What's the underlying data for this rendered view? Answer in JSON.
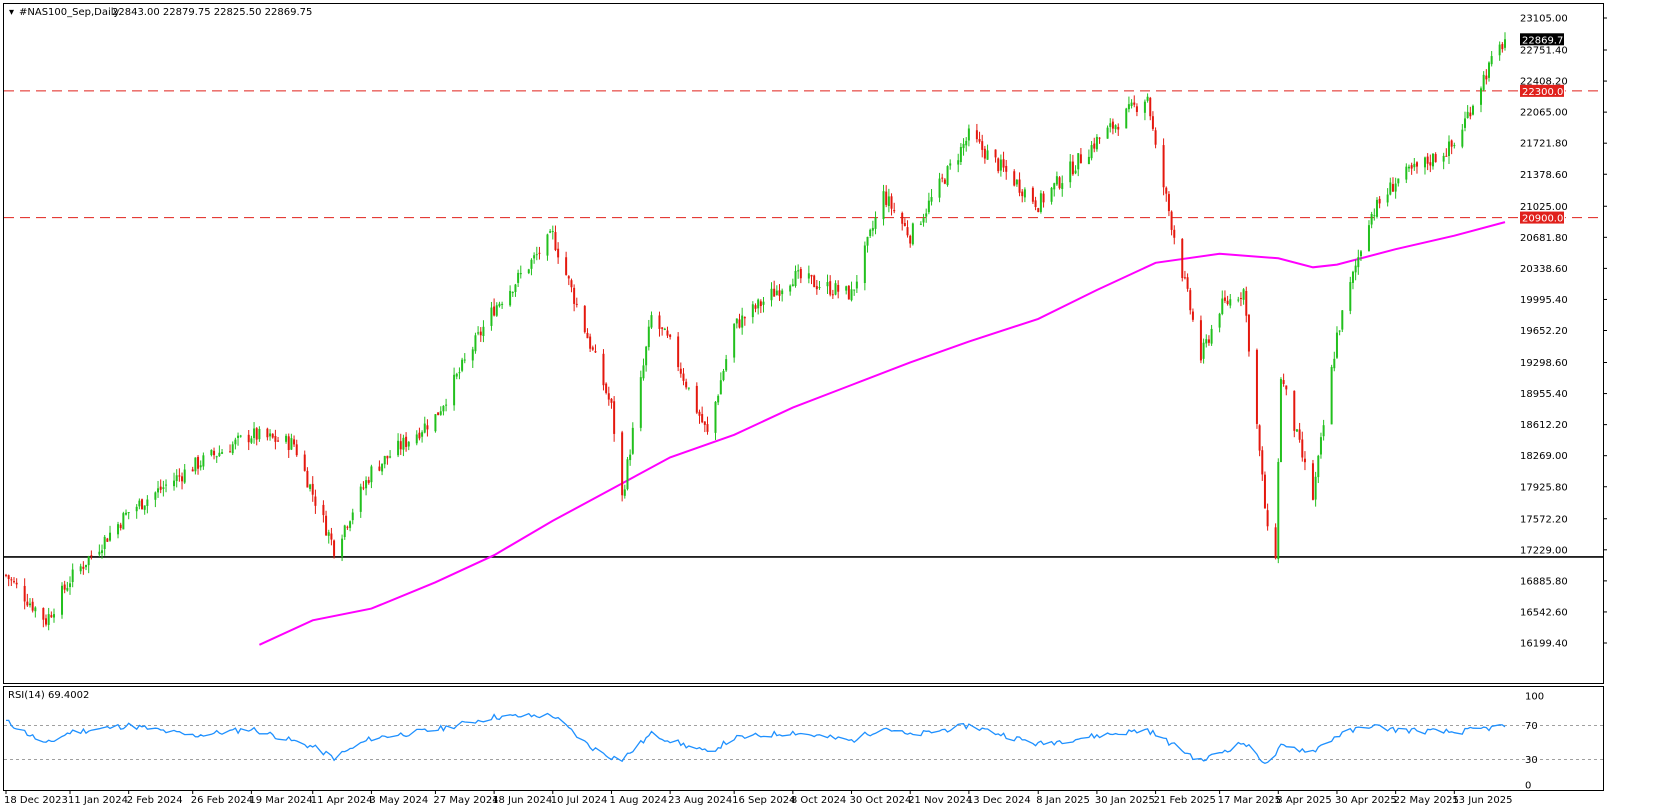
{
  "header": {
    "symbol": "#NAS100_Sep,Daily",
    "ohlc": "22843.00 22879.75 22825.50 22869.75"
  },
  "chart_data": {
    "type": "candlestick",
    "price_axis": {
      "ticks": [
        "23105.00",
        "22751.40",
        "22408.20",
        "22065.00",
        "21721.80",
        "21378.60",
        "21025.00",
        "20681.80",
        "20338.60",
        "19995.40",
        "19652.20",
        "19298.60",
        "18955.40",
        "18612.20",
        "18269.00",
        "17925.80",
        "17572.20",
        "17229.00",
        "16885.80",
        "16542.60",
        "16199.40"
      ],
      "range": [
        16199.4,
        23105.0
      ],
      "current_price": "22869.75",
      "current_price_value": 22869.75
    },
    "date_axis": {
      "labels": [
        "18 Dec 2023",
        "11 Jan 2024",
        "2 Feb 2024",
        "26 Feb 2024",
        "19 Mar 2024",
        "11 Apr 2024",
        "3 May 2024",
        "27 May 2024",
        "18 Jun 2024",
        "10 Jul 2024",
        "1 Aug 2024",
        "23 Aug 2024",
        "16 Sep 2024",
        "8 Oct 2024",
        "30 Oct 2024",
        "21 Nov 2024",
        "13 Dec 2024",
        "8 Jan 2025",
        "30 Jan 2025",
        "21 Feb 2025",
        "17 Mar 2025",
        "8 Apr 2025",
        "30 Apr 2025",
        "22 May 2025",
        "13 Jun 2025"
      ]
    },
    "levels": [
      {
        "label": "22300.00",
        "value": 22300.0,
        "style": "dashed",
        "color": "#e0201b"
      },
      {
        "label": "20900.00",
        "value": 20900.0,
        "style": "dashed",
        "color": "#e0201b"
      },
      {
        "value": 17150.0,
        "style": "solid",
        "color": "#000000"
      }
    ],
    "key_points": [
      {
        "date": "18 Dec 2023",
        "close": 16950
      },
      {
        "date": "2 Jan 2024",
        "close": 16450
      },
      {
        "date": "11 Jan 2024",
        "close": 16900
      },
      {
        "date": "2 Feb 2024",
        "close": 17650
      },
      {
        "date": "26 Feb 2024",
        "close": 18150
      },
      {
        "date": "19 Mar 2024",
        "close": 18500
      },
      {
        "date": "4 Apr 2024",
        "close": 18400
      },
      {
        "date": "11 Apr 2024",
        "close": 17850
      },
      {
        "date": "19 Apr 2024",
        "close": 17250
      },
      {
        "date": "3 May 2024",
        "close": 18100
      },
      {
        "date": "27 May 2024",
        "close": 18700
      },
      {
        "date": "18 Jun 2024",
        "close": 19900
      },
      {
        "date": "10 Jul 2024",
        "close": 20700
      },
      {
        "date": "24 Jul 2024",
        "close": 19500
      },
      {
        "date": "1 Aug 2024",
        "close": 18800
      },
      {
        "date": "5 Aug 2024",
        "close": 17800
      },
      {
        "date": "16 Aug 2024",
        "close": 19800
      },
      {
        "date": "23 Aug 2024",
        "close": 19500
      },
      {
        "date": "6 Sep 2024",
        "close": 18500
      },
      {
        "date": "16 Sep 2024",
        "close": 19700
      },
      {
        "date": "8 Oct 2024",
        "close": 20250
      },
      {
        "date": "30 Oct 2024",
        "close": 20050
      },
      {
        "date": "11 Nov 2024",
        "close": 21150
      },
      {
        "date": "21 Nov 2024",
        "close": 20700
      },
      {
        "date": "13 Dec 2024",
        "close": 21800
      },
      {
        "date": "8 Jan 2025",
        "close": 21050
      },
      {
        "date": "30 Jan 2025",
        "close": 21750
      },
      {
        "date": "18 Feb 2025",
        "close": 22250
      },
      {
        "date": "21 Feb 2025",
        "close": 21650
      },
      {
        "date": "10 Mar 2025",
        "close": 19350
      },
      {
        "date": "17 Mar 2025",
        "close": 19900
      },
      {
        "date": "26 Mar 2025",
        "close": 20100
      },
      {
        "date": "4 Apr 2025",
        "close": 17400
      },
      {
        "date": "7 Apr 2025",
        "close": 17200
      },
      {
        "date": "9 Apr 2025",
        "close": 19150
      },
      {
        "date": "21 Apr 2025",
        "close": 17800
      },
      {
        "date": "30 Apr 2025",
        "close": 19600
      },
      {
        "date": "12 May 2025",
        "close": 20900
      },
      {
        "date": "22 May 2025",
        "close": 21300
      },
      {
        "date": "13 Jun 2025",
        "close": 21700
      },
      {
        "date": "24 Jun 2025",
        "close": 22450
      },
      {
        "date": "2 Jul 2025",
        "close": 22869.75
      }
    ],
    "moving_average": {
      "color": "#ff00ff",
      "points": [
        {
          "date": "22 Mar 2024",
          "value": 16180
        },
        {
          "date": "11 Apr 2024",
          "value": 16450
        },
        {
          "date": "3 May 2024",
          "value": 16580
        },
        {
          "date": "27 May 2024",
          "value": 16870
        },
        {
          "date": "18 Jun 2024",
          "value": 17170
        },
        {
          "date": "10 Jul 2024",
          "value": 17550
        },
        {
          "date": "1 Aug 2024",
          "value": 17900
        },
        {
          "date": "23 Aug 2024",
          "value": 18250
        },
        {
          "date": "16 Sep 2024",
          "value": 18500
        },
        {
          "date": "8 Oct 2024",
          "value": 18800
        },
        {
          "date": "30 Oct 2024",
          "value": 19050
        },
        {
          "date": "21 Nov 2024",
          "value": 19300
        },
        {
          "date": "13 Dec 2024",
          "value": 19530
        },
        {
          "date": "8 Jan 2025",
          "value": 19780
        },
        {
          "date": "30 Jan 2025",
          "value": 20100
        },
        {
          "date": "21 Feb 2025",
          "value": 20400
        },
        {
          "date": "17 Mar 2025",
          "value": 20500
        },
        {
          "date": "8 Apr 2025",
          "value": 20450
        },
        {
          "date": "21 Apr 2025",
          "value": 20350
        },
        {
          "date": "30 Apr 2025",
          "value": 20380
        },
        {
          "date": "22 May 2025",
          "value": 20550
        },
        {
          "date": "13 Jun 2025",
          "value": 20700
        },
        {
          "date": "2 Jul 2025",
          "value": 20850
        }
      ]
    },
    "rsi": {
      "label": "RSI(14) 69.4002",
      "color": "#1e90ff",
      "ticks": [
        "100",
        "70",
        "30",
        "0"
      ],
      "levels": [
        70,
        30
      ],
      "key_points": [
        {
          "date": "18 Dec 2023",
          "value": 75
        },
        {
          "date": "2 Jan 2024",
          "value": 48
        },
        {
          "date": "11 Jan 2024",
          "value": 62
        },
        {
          "date": "2 Feb 2024",
          "value": 70
        },
        {
          "date": "26 Feb 2024",
          "value": 58
        },
        {
          "date": "19 Mar 2024",
          "value": 66
        },
        {
          "date": "11 Apr 2024",
          "value": 45
        },
        {
          "date": "19 Apr 2024",
          "value": 32
        },
        {
          "date": "3 May 2024",
          "value": 55
        },
        {
          "date": "27 May 2024",
          "value": 65
        },
        {
          "date": "18 Jun 2024",
          "value": 80
        },
        {
          "date": "10 Jul 2024",
          "value": 82
        },
        {
          "date": "24 Jul 2024",
          "value": 45
        },
        {
          "date": "1 Aug 2024",
          "value": 33
        },
        {
          "date": "5 Aug 2024",
          "value": 30
        },
        {
          "date": "16 Aug 2024",
          "value": 60
        },
        {
          "date": "6 Sep 2024",
          "value": 38
        },
        {
          "date": "16 Sep 2024",
          "value": 55
        },
        {
          "date": "8 Oct 2024",
          "value": 62
        },
        {
          "date": "30 Oct 2024",
          "value": 52
        },
        {
          "date": "11 Nov 2024",
          "value": 68
        },
        {
          "date": "21 Nov 2024",
          "value": 58
        },
        {
          "date": "13 Dec 2024",
          "value": 70
        },
        {
          "date": "8 Jan 2025",
          "value": 48
        },
        {
          "date": "30 Jan 2025",
          "value": 58
        },
        {
          "date": "18 Feb 2025",
          "value": 65
        },
        {
          "date": "10 Mar 2025",
          "value": 28
        },
        {
          "date": "17 Mar 2025",
          "value": 38
        },
        {
          "date": "26 Mar 2025",
          "value": 50
        },
        {
          "date": "4 Apr 2025",
          "value": 24
        },
        {
          "date": "9 Apr 2025",
          "value": 45
        },
        {
          "date": "21 Apr 2025",
          "value": 40
        },
        {
          "date": "30 Apr 2025",
          "value": 58
        },
        {
          "date": "12 May 2025",
          "value": 70
        },
        {
          "date": "22 May 2025",
          "value": 65
        },
        {
          "date": "13 Jun 2025",
          "value": 62
        },
        {
          "date": "2 Jul 2025",
          "value": 69.4
        }
      ]
    },
    "colors": {
      "up": "#22c01e",
      "down": "#e4180e",
      "level": "#e0201b",
      "support": "#000000",
      "ma": "#ff00ff",
      "rsi": "#1e90ff"
    }
  }
}
